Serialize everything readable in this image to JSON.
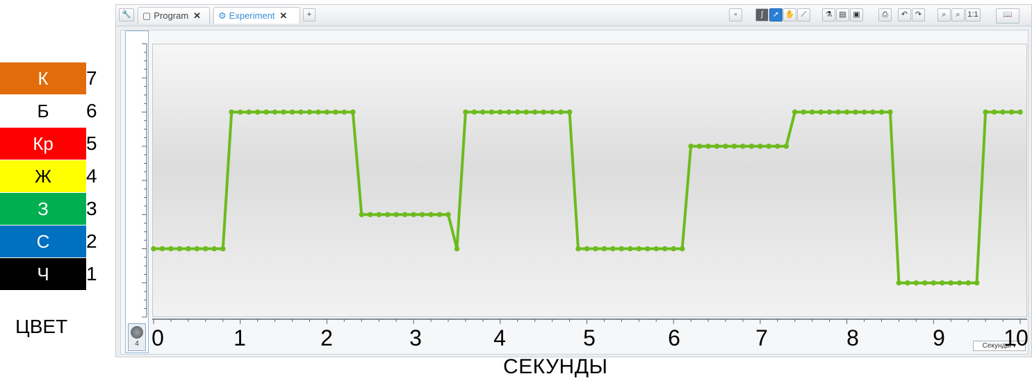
{
  "tabs": [
    {
      "label": "Program",
      "active": false
    },
    {
      "label": "Experiment",
      "active": true
    }
  ],
  "sensor_port": {
    "label": "4"
  },
  "units_dropdown": {
    "selected": "Секунды"
  },
  "legend": {
    "title": "ЦВЕТ",
    "items": [
      {
        "code": "К",
        "value": "7",
        "color": "#e36c0a",
        "text_color": "#ffffff"
      },
      {
        "code": "Б",
        "value": "6",
        "color": "#ffffff",
        "text_color": "#000000"
      },
      {
        "code": "Кр",
        "value": "5",
        "color": "#ff0000",
        "text_color": "#ffffff"
      },
      {
        "code": "Ж",
        "value": "4",
        "color": "#ffff00",
        "text_color": "#000000"
      },
      {
        "code": "З",
        "value": "3",
        "color": "#00b050",
        "text_color": "#ffffff"
      },
      {
        "code": "С",
        "value": "2",
        "color": "#0070c0",
        "text_color": "#ffffff"
      },
      {
        "code": "Ч",
        "value": "1",
        "color": "#000000",
        "text_color": "#ffffff"
      }
    ]
  },
  "chart_data": {
    "type": "line",
    "xlabel": "СЕКУНДЫ",
    "ylabel": "ЦВЕТ",
    "xlim": [
      0,
      10
    ],
    "ylim": [
      0,
      8
    ],
    "x_ticks": [
      "0",
      "1",
      "2",
      "3",
      "4",
      "5",
      "6",
      "7",
      "8",
      "9",
      "10"
    ],
    "series_color": "#6dbb1e",
    "sample_interval": 0.1,
    "x": [
      0,
      0.1,
      0.2,
      0.3,
      0.4,
      0.5,
      0.6,
      0.7,
      0.8,
      0.9,
      1.0,
      1.1,
      1.2,
      1.3,
      1.4,
      1.5,
      1.6,
      1.7,
      1.8,
      1.9,
      2.0,
      2.1,
      2.2,
      2.3,
      2.4,
      2.5,
      2.6,
      2.7,
      2.8,
      2.9,
      3.0,
      3.1,
      3.2,
      3.3,
      3.4,
      3.5,
      3.6,
      3.7,
      3.8,
      3.9,
      4.0,
      4.1,
      4.2,
      4.3,
      4.4,
      4.5,
      4.6,
      4.7,
      4.8,
      4.9,
      5.0,
      5.1,
      5.2,
      5.3,
      5.4,
      5.5,
      5.6,
      5.7,
      5.8,
      5.9,
      6.0,
      6.1,
      6.2,
      6.3,
      6.4,
      6.5,
      6.6,
      6.7,
      6.8,
      6.9,
      7.0,
      7.1,
      7.2,
      7.3,
      7.4,
      7.5,
      7.6,
      7.7,
      7.8,
      7.9,
      8.0,
      8.1,
      8.2,
      8.3,
      8.4,
      8.5,
      8.6,
      8.7,
      8.8,
      8.9,
      9.0,
      9.1,
      9.2,
      9.3,
      9.4,
      9.5,
      9.6,
      9.7,
      9.8,
      9.9,
      10.0
    ],
    "y": [
      2,
      2,
      2,
      2,
      2,
      2,
      2,
      2,
      2,
      6,
      6,
      6,
      6,
      6,
      6,
      6,
      6,
      6,
      6,
      6,
      6,
      6,
      6,
      6,
      3,
      3,
      3,
      3,
      3,
      3,
      3,
      3,
      3,
      3,
      3,
      2,
      6,
      6,
      6,
      6,
      6,
      6,
      6,
      6,
      6,
      6,
      6,
      6,
      6,
      2,
      2,
      2,
      2,
      2,
      2,
      2,
      2,
      2,
      2,
      2,
      2,
      2,
      5,
      5,
      5,
      5,
      5,
      5,
      5,
      5,
      5,
      5,
      5,
      5,
      6,
      6,
      6,
      6,
      6,
      6,
      6,
      6,
      6,
      6,
      6,
      6,
      1,
      1,
      1,
      1,
      1,
      1,
      1,
      1,
      1,
      1,
      6,
      6,
      6,
      6,
      6
    ]
  }
}
